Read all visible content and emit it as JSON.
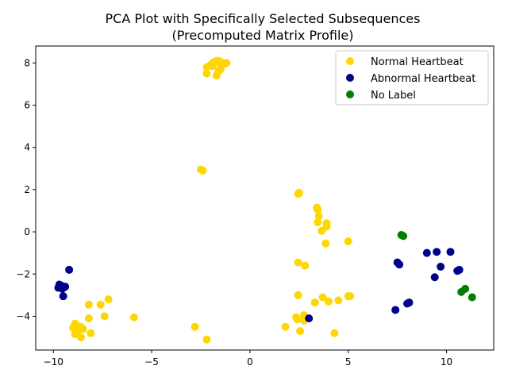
{
  "chart_data": {
    "type": "scatter",
    "title_lines": [
      "PCA Plot with Specifically Selected Subsequences",
      "(Precomputed Matrix Profile)"
    ],
    "xlabel": "",
    "ylabel": "",
    "xlim": [
      -10.9,
      12.4
    ],
    "ylim": [
      -5.6,
      8.8
    ],
    "xticks": [
      -10,
      -5,
      0,
      5,
      10
    ],
    "yticks": [
      -4,
      -2,
      0,
      2,
      4,
      6,
      8
    ],
    "xtick_labels": [
      "−10",
      "−5",
      "0",
      "5",
      "10"
    ],
    "ytick_labels": [
      "−4",
      "−2",
      "0",
      "2",
      "4",
      "6",
      "8"
    ],
    "grid": false,
    "legend_position": "top-right",
    "series": [
      {
        "name": "Normal Heartbeat",
        "color": "#ffd700",
        "points": [
          [
            -2.2,
            7.8
          ],
          [
            -2.0,
            7.9
          ],
          [
            -1.9,
            8.0
          ],
          [
            -1.8,
            8.05
          ],
          [
            -1.7,
            8.1
          ],
          [
            -1.6,
            8.1
          ],
          [
            -1.5,
            8.05
          ],
          [
            -1.4,
            8.0
          ],
          [
            -1.3,
            7.95
          ],
          [
            -1.2,
            8.0
          ],
          [
            -1.6,
            7.6
          ],
          [
            -1.5,
            7.7
          ],
          [
            -1.7,
            7.4
          ],
          [
            -2.2,
            7.5
          ],
          [
            -1.9,
            7.85
          ],
          [
            -1.45,
            7.9
          ],
          [
            -2.5,
            2.95
          ],
          [
            -2.4,
            2.9
          ],
          [
            2.5,
            1.85
          ],
          [
            2.45,
            1.8
          ],
          [
            3.4,
            1.15
          ],
          [
            3.45,
            1.05
          ],
          [
            3.5,
            0.75
          ],
          [
            3.45,
            0.45
          ],
          [
            3.9,
            0.4
          ],
          [
            3.9,
            0.25
          ],
          [
            3.65,
            0.05
          ],
          [
            3.85,
            -0.55
          ],
          [
            5.0,
            -0.45
          ],
          [
            2.45,
            -1.45
          ],
          [
            2.8,
            -1.6
          ],
          [
            2.45,
            -3.0
          ],
          [
            3.7,
            -3.1
          ],
          [
            5.0,
            -3.05
          ],
          [
            5.1,
            -3.05
          ],
          [
            4.0,
            -3.3
          ],
          [
            4.5,
            -3.25
          ],
          [
            3.3,
            -3.35
          ],
          [
            2.75,
            -3.95
          ],
          [
            2.35,
            -4.05
          ],
          [
            2.4,
            -4.15
          ],
          [
            2.75,
            -4.2
          ],
          [
            1.8,
            -4.5
          ],
          [
            2.55,
            -4.7
          ],
          [
            4.3,
            -4.8
          ],
          [
            -2.8,
            -4.5
          ],
          [
            -2.2,
            -5.1
          ],
          [
            -7.2,
            -3.2
          ],
          [
            -7.6,
            -3.45
          ],
          [
            -8.2,
            -3.45
          ],
          [
            -7.4,
            -4.0
          ],
          [
            -5.9,
            -4.05
          ],
          [
            -8.2,
            -4.1
          ],
          [
            -8.9,
            -4.35
          ],
          [
            -8.8,
            -4.45
          ],
          [
            -8.6,
            -4.5
          ],
          [
            -9.0,
            -4.55
          ],
          [
            -8.7,
            -4.6
          ],
          [
            -8.5,
            -4.6
          ],
          [
            -8.8,
            -4.75
          ],
          [
            -8.1,
            -4.8
          ],
          [
            -8.9,
            -4.85
          ],
          [
            -8.6,
            -5.0
          ]
        ]
      },
      {
        "name": "Abnormal Heartbeat",
        "color": "#00008b",
        "points": [
          [
            -9.2,
            -1.8
          ],
          [
            -9.7,
            -2.5
          ],
          [
            -9.6,
            -2.55
          ],
          [
            -9.75,
            -2.65
          ],
          [
            -9.4,
            -2.6
          ],
          [
            -9.55,
            -2.7
          ],
          [
            -9.5,
            -3.05
          ],
          [
            3.0,
            -4.1
          ],
          [
            7.4,
            -3.7
          ],
          [
            7.5,
            -1.45
          ],
          [
            7.6,
            -1.55
          ],
          [
            9.0,
            -1.0
          ],
          [
            9.5,
            -0.95
          ],
          [
            10.2,
            -0.95
          ],
          [
            9.7,
            -1.65
          ],
          [
            10.65,
            -1.8
          ],
          [
            10.55,
            -1.85
          ],
          [
            9.4,
            -2.15
          ],
          [
            8.1,
            -3.35
          ],
          [
            8.0,
            -3.4
          ]
        ]
      },
      {
        "name": "No Label",
        "color": "#008000",
        "points": [
          [
            7.7,
            -0.15
          ],
          [
            7.8,
            -0.2
          ],
          [
            10.95,
            -2.7
          ],
          [
            10.75,
            -2.85
          ],
          [
            11.3,
            -3.1
          ]
        ]
      }
    ]
  }
}
